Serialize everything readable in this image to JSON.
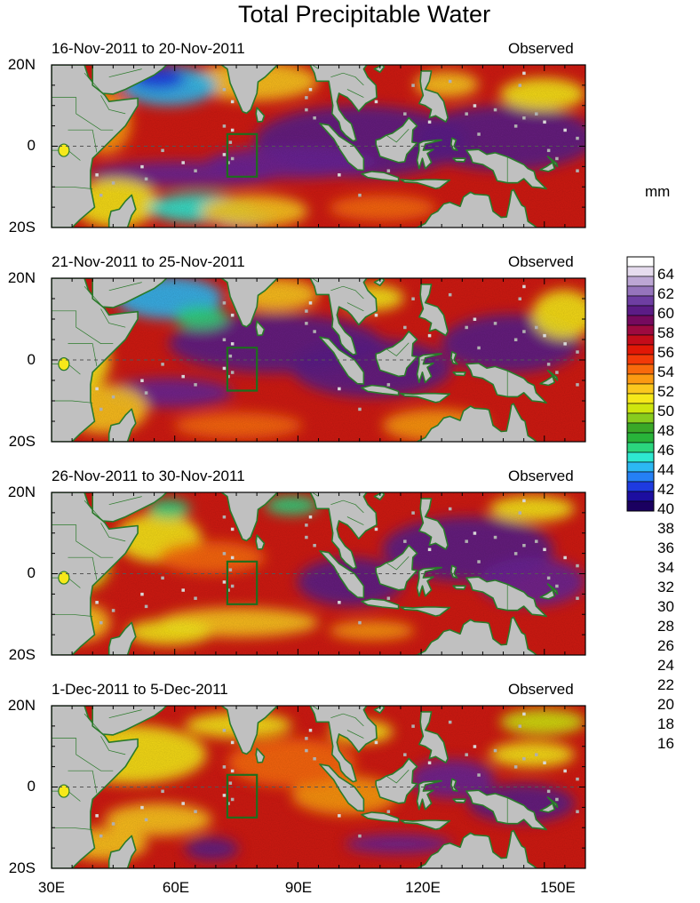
{
  "title": "Total Precipitable Water",
  "units": "mm",
  "panels": [
    {
      "date_range": "16-Nov-2011 to 20-Nov-2011",
      "status": "Observed"
    },
    {
      "date_range": "21-Nov-2011 to 25-Nov-2011",
      "status": "Observed"
    },
    {
      "date_range": "26-Nov-2011 to 30-Nov-2011",
      "status": "Observed"
    },
    {
      "date_range": "1-Dec-2011 to 5-Dec-2011",
      "status": "Observed"
    }
  ],
  "axes": {
    "lat_labels": [
      "20N",
      "0",
      "20S"
    ],
    "lon_labels": [
      "30E",
      "60E",
      "90E",
      "120E",
      "150E"
    ]
  },
  "colorbar": {
    "labels": [
      "64",
      "62",
      "60",
      "58",
      "56",
      "54",
      "52",
      "50",
      "48",
      "46",
      "44",
      "42",
      "40",
      "38",
      "36",
      "34",
      "32",
      "30",
      "28",
      "26",
      "24",
      "22",
      "20",
      "18",
      "16"
    ],
    "colors": [
      "#1a0060",
      "#1c0ea0",
      "#1e3be0",
      "#2580f5",
      "#2cb8f3",
      "#2ee8d0",
      "#2bd67e",
      "#28b43a",
      "#3aa828",
      "#88cc1e",
      "#cfe60e",
      "#f6e81a",
      "#fbc81e",
      "#fb9a12",
      "#f86a0c",
      "#f23a08",
      "#e11806",
      "#c40c1a",
      "#9e0a40",
      "#760a5e",
      "#5c1c86",
      "#6e3ea2",
      "#9574bc",
      "#bca6d4",
      "#e6dcee",
      "#ffffff"
    ]
  },
  "maps": {
    "colors": {
      "ocean_base": "#cf1a12",
      "land": "#c0c0c0",
      "coast": "#2a7a2a",
      "box": "#1d6e1d",
      "equator": "#555555"
    }
  }
}
